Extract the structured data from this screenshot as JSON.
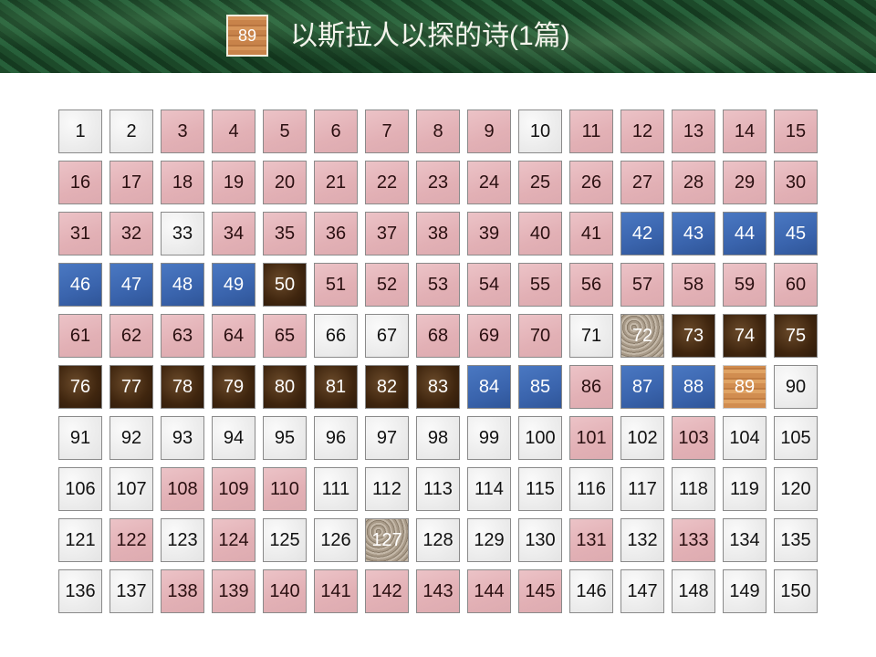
{
  "header": {
    "badge": "89",
    "title": "以斯拉人以探的诗(1篇)"
  },
  "tile_type_legend": {
    "w": "white-marble",
    "p": "pink",
    "b": "blue",
    "d": "dark-brown",
    "g": "granite",
    "o": "wood"
  },
  "tiles": [
    {
      "n": "1",
      "t": "w"
    },
    {
      "n": "2",
      "t": "w"
    },
    {
      "n": "3",
      "t": "p"
    },
    {
      "n": "4",
      "t": "p"
    },
    {
      "n": "5",
      "t": "p"
    },
    {
      "n": "6",
      "t": "p"
    },
    {
      "n": "7",
      "t": "p"
    },
    {
      "n": "8",
      "t": "p"
    },
    {
      "n": "9",
      "t": "p"
    },
    {
      "n": "10",
      "t": "w"
    },
    {
      "n": "11",
      "t": "p"
    },
    {
      "n": "12",
      "t": "p"
    },
    {
      "n": "13",
      "t": "p"
    },
    {
      "n": "14",
      "t": "p"
    },
    {
      "n": "15",
      "t": "p"
    },
    {
      "n": "16",
      "t": "p"
    },
    {
      "n": "17",
      "t": "p"
    },
    {
      "n": "18",
      "t": "p"
    },
    {
      "n": "19",
      "t": "p"
    },
    {
      "n": "20",
      "t": "p"
    },
    {
      "n": "21",
      "t": "p"
    },
    {
      "n": "22",
      "t": "p"
    },
    {
      "n": "23",
      "t": "p"
    },
    {
      "n": "24",
      "t": "p"
    },
    {
      "n": "25",
      "t": "p"
    },
    {
      "n": "26",
      "t": "p"
    },
    {
      "n": "27",
      "t": "p"
    },
    {
      "n": "28",
      "t": "p"
    },
    {
      "n": "29",
      "t": "p"
    },
    {
      "n": "30",
      "t": "p"
    },
    {
      "n": "31",
      "t": "p"
    },
    {
      "n": "32",
      "t": "p"
    },
    {
      "n": "33",
      "t": "w"
    },
    {
      "n": "34",
      "t": "p"
    },
    {
      "n": "35",
      "t": "p"
    },
    {
      "n": "36",
      "t": "p"
    },
    {
      "n": "37",
      "t": "p"
    },
    {
      "n": "38",
      "t": "p"
    },
    {
      "n": "39",
      "t": "p"
    },
    {
      "n": "40",
      "t": "p"
    },
    {
      "n": "41",
      "t": "p"
    },
    {
      "n": "42",
      "t": "b"
    },
    {
      "n": "43",
      "t": "b"
    },
    {
      "n": "44",
      "t": "b"
    },
    {
      "n": "45",
      "t": "b"
    },
    {
      "n": "46",
      "t": "b"
    },
    {
      "n": "47",
      "t": "b"
    },
    {
      "n": "48",
      "t": "b"
    },
    {
      "n": "49",
      "t": "b"
    },
    {
      "n": "50",
      "t": "d"
    },
    {
      "n": "51",
      "t": "p"
    },
    {
      "n": "52",
      "t": "p"
    },
    {
      "n": "53",
      "t": "p"
    },
    {
      "n": "54",
      "t": "p"
    },
    {
      "n": "55",
      "t": "p"
    },
    {
      "n": "56",
      "t": "p"
    },
    {
      "n": "57",
      "t": "p"
    },
    {
      "n": "58",
      "t": "p"
    },
    {
      "n": "59",
      "t": "p"
    },
    {
      "n": "60",
      "t": "p"
    },
    {
      "n": "61",
      "t": "p"
    },
    {
      "n": "62",
      "t": "p"
    },
    {
      "n": "63",
      "t": "p"
    },
    {
      "n": "64",
      "t": "p"
    },
    {
      "n": "65",
      "t": "p"
    },
    {
      "n": "66",
      "t": "w"
    },
    {
      "n": "67",
      "t": "w"
    },
    {
      "n": "68",
      "t": "p"
    },
    {
      "n": "69",
      "t": "p"
    },
    {
      "n": "70",
      "t": "p"
    },
    {
      "n": "71",
      "t": "w"
    },
    {
      "n": "72",
      "t": "g"
    },
    {
      "n": "73",
      "t": "d"
    },
    {
      "n": "74",
      "t": "d"
    },
    {
      "n": "75",
      "t": "d"
    },
    {
      "n": "76",
      "t": "d"
    },
    {
      "n": "77",
      "t": "d"
    },
    {
      "n": "78",
      "t": "d"
    },
    {
      "n": "79",
      "t": "d"
    },
    {
      "n": "80",
      "t": "d"
    },
    {
      "n": "81",
      "t": "d"
    },
    {
      "n": "82",
      "t": "d"
    },
    {
      "n": "83",
      "t": "d"
    },
    {
      "n": "84",
      "t": "b"
    },
    {
      "n": "85",
      "t": "b"
    },
    {
      "n": "86",
      "t": "p"
    },
    {
      "n": "87",
      "t": "b"
    },
    {
      "n": "88",
      "t": "b"
    },
    {
      "n": "89",
      "t": "o"
    },
    {
      "n": "90",
      "t": "w"
    },
    {
      "n": "91",
      "t": "w"
    },
    {
      "n": "92",
      "t": "w"
    },
    {
      "n": "93",
      "t": "w"
    },
    {
      "n": "94",
      "t": "w"
    },
    {
      "n": "95",
      "t": "w"
    },
    {
      "n": "96",
      "t": "w"
    },
    {
      "n": "97",
      "t": "w"
    },
    {
      "n": "98",
      "t": "w"
    },
    {
      "n": "99",
      "t": "w"
    },
    {
      "n": "100",
      "t": "w"
    },
    {
      "n": "101",
      "t": "p"
    },
    {
      "n": "102",
      "t": "w"
    },
    {
      "n": "103",
      "t": "p"
    },
    {
      "n": "104",
      "t": "w"
    },
    {
      "n": "105",
      "t": "w"
    },
    {
      "n": "106",
      "t": "w"
    },
    {
      "n": "107",
      "t": "w"
    },
    {
      "n": "108",
      "t": "p"
    },
    {
      "n": "109",
      "t": "p"
    },
    {
      "n": "110",
      "t": "p"
    },
    {
      "n": "111",
      "t": "w"
    },
    {
      "n": "112",
      "t": "w"
    },
    {
      "n": "113",
      "t": "w"
    },
    {
      "n": "114",
      "t": "w"
    },
    {
      "n": "115",
      "t": "w"
    },
    {
      "n": "116",
      "t": "w"
    },
    {
      "n": "117",
      "t": "w"
    },
    {
      "n": "118",
      "t": "w"
    },
    {
      "n": "119",
      "t": "w"
    },
    {
      "n": "120",
      "t": "w"
    },
    {
      "n": "121",
      "t": "w"
    },
    {
      "n": "122",
      "t": "p"
    },
    {
      "n": "123",
      "t": "w"
    },
    {
      "n": "124",
      "t": "p"
    },
    {
      "n": "125",
      "t": "w"
    },
    {
      "n": "126",
      "t": "w"
    },
    {
      "n": "127",
      "t": "g"
    },
    {
      "n": "128",
      "t": "w"
    },
    {
      "n": "129",
      "t": "w"
    },
    {
      "n": "130",
      "t": "w"
    },
    {
      "n": "131",
      "t": "p"
    },
    {
      "n": "132",
      "t": "w"
    },
    {
      "n": "133",
      "t": "p"
    },
    {
      "n": "134",
      "t": "w"
    },
    {
      "n": "135",
      "t": "w"
    },
    {
      "n": "136",
      "t": "w"
    },
    {
      "n": "137",
      "t": "w"
    },
    {
      "n": "138",
      "t": "p"
    },
    {
      "n": "139",
      "t": "p"
    },
    {
      "n": "140",
      "t": "p"
    },
    {
      "n": "141",
      "t": "p"
    },
    {
      "n": "142",
      "t": "p"
    },
    {
      "n": "143",
      "t": "p"
    },
    {
      "n": "144",
      "t": "p"
    },
    {
      "n": "145",
      "t": "p"
    },
    {
      "n": "146",
      "t": "w"
    },
    {
      "n": "147",
      "t": "w"
    },
    {
      "n": "148",
      "t": "w"
    },
    {
      "n": "149",
      "t": "w"
    },
    {
      "n": "150",
      "t": "w"
    }
  ]
}
